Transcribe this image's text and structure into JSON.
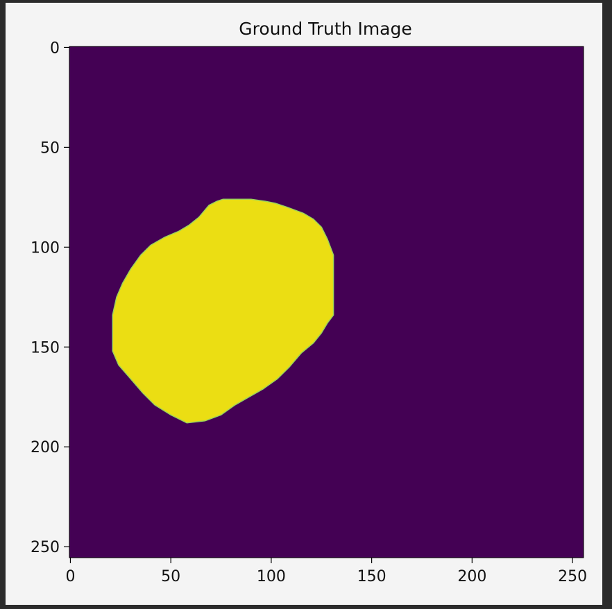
{
  "chart_data": {
    "type": "heatmap",
    "title": "Ground Truth Image",
    "xlabel": "",
    "ylabel": "",
    "xlim": [
      -0.5,
      255.5
    ],
    "ylim": [
      255.5,
      -0.5
    ],
    "y_axis_inverted": true,
    "colormap": "viridis",
    "grid": false,
    "legend": "none",
    "x_ticks": [
      0,
      50,
      100,
      150,
      200,
      250
    ],
    "y_ticks": [
      0,
      50,
      100,
      150,
      200,
      250
    ],
    "values_present": [
      0,
      1
    ],
    "colors": {
      "background_value_0": "#440154",
      "mask_value_1": "#fde725",
      "mask_rendered": "#ebde13"
    },
    "mask_boundary": [
      [
        76,
        76
      ],
      [
        84,
        76
      ],
      [
        90,
        76
      ],
      [
        97,
        77
      ],
      [
        102,
        78
      ],
      [
        108,
        80
      ],
      [
        116,
        83
      ],
      [
        121,
        86
      ],
      [
        125,
        90
      ],
      [
        128,
        96
      ],
      [
        131,
        104
      ],
      [
        131,
        112
      ],
      [
        131,
        120
      ],
      [
        131,
        128
      ],
      [
        131,
        134
      ],
      [
        128,
        138
      ],
      [
        125,
        143
      ],
      [
        121,
        148
      ],
      [
        115,
        153
      ],
      [
        109,
        160
      ],
      [
        103,
        166
      ],
      [
        96,
        171
      ],
      [
        89,
        175
      ],
      [
        82,
        179
      ],
      [
        75,
        184
      ],
      [
        67,
        187
      ],
      [
        58,
        188
      ],
      [
        50,
        184
      ],
      [
        42,
        179
      ],
      [
        36,
        173
      ],
      [
        30,
        166
      ],
      [
        24,
        159
      ],
      [
        21,
        152
      ],
      [
        21,
        143
      ],
      [
        21,
        134
      ],
      [
        23,
        125
      ],
      [
        26,
        118
      ],
      [
        30,
        111
      ],
      [
        35,
        104
      ],
      [
        40,
        99
      ],
      [
        47,
        95
      ],
      [
        54,
        92
      ],
      [
        59,
        89
      ],
      [
        64,
        85
      ],
      [
        69,
        79
      ],
      [
        73,
        77
      ]
    ]
  }
}
